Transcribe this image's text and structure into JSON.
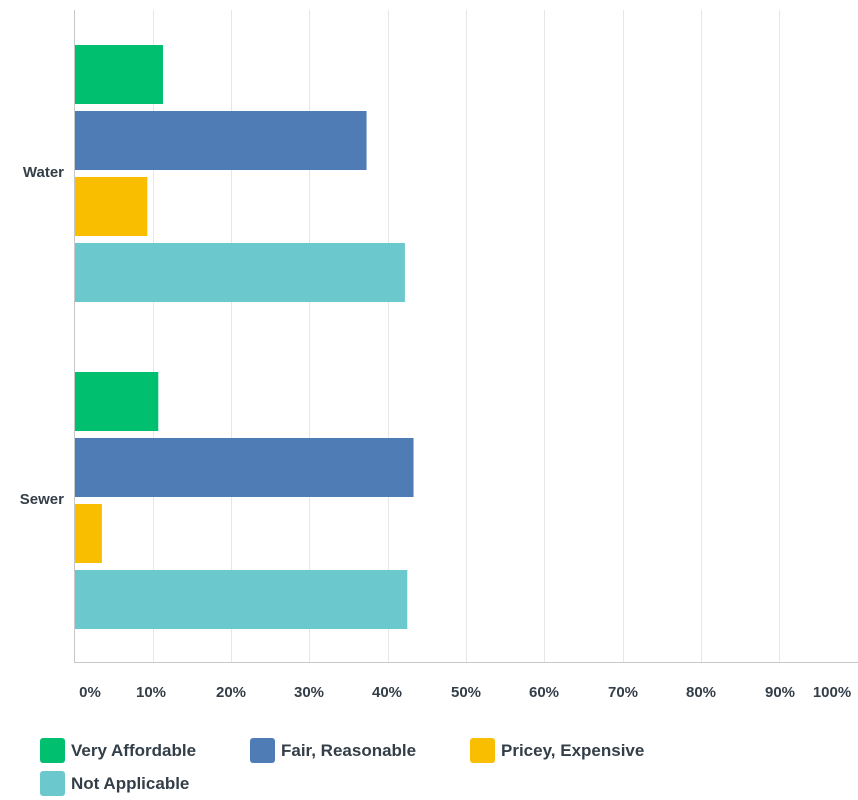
{
  "chart_data": {
    "type": "bar",
    "orientation": "horizontal",
    "categories": [
      "Water",
      "Sewer"
    ],
    "series": [
      {
        "name": "Very Affordable",
        "color": "#00bf6f",
        "values": [
          11.3,
          10.7
        ]
      },
      {
        "name": "Fair, Reasonable",
        "color": "#507cb6",
        "values": [
          37.3,
          43.3
        ]
      },
      {
        "name": "Pricey, Expensive",
        "color": "#f9be00",
        "values": [
          9.3,
          3.5
        ]
      },
      {
        "name": "Not Applicable",
        "color": "#6bc8cd",
        "values": [
          42.2,
          42.5
        ]
      }
    ],
    "x_ticks": [
      "0%",
      "10%",
      "20%",
      "30%",
      "40%",
      "50%",
      "60%",
      "70%",
      "80%",
      "90%",
      "100%"
    ],
    "xlim": [
      0,
      100
    ],
    "grid": true,
    "legend_position": "bottom"
  }
}
